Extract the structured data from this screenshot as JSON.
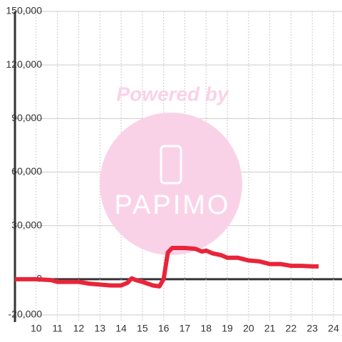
{
  "chart_data": {
    "type": "line",
    "watermark": {
      "top": "Powered by",
      "bottom": "PAPIMO"
    },
    "x": [
      9,
      10,
      10.7,
      11,
      12,
      12.5,
      13,
      13.5,
      14,
      14.3,
      14.5,
      14.7,
      15,
      15.5,
      15.8,
      16,
      16.2,
      16.4,
      17,
      17.5,
      17.8,
      18,
      18.3,
      18.7,
      19,
      19.5,
      20,
      20.5,
      21,
      21.5,
      22,
      22.5,
      23,
      23.3
    ],
    "series": [
      {
        "color": "#e8253a",
        "values": [
          0,
          0,
          -500,
          -1500,
          -1500,
          -2500,
          -3000,
          -3500,
          -3500,
          -2000,
          500,
          -500,
          -1500,
          -3500,
          -4000,
          0,
          15000,
          17500,
          17500,
          17000,
          15500,
          16000,
          14500,
          13500,
          12000,
          12000,
          10500,
          10000,
          8500,
          8500,
          7500,
          7500,
          7200,
          7200
        ]
      }
    ],
    "xlim": [
      9,
      24.4
    ],
    "xticks": [
      10,
      11,
      12,
      13,
      14,
      15,
      16,
      17,
      18,
      19,
      20,
      21,
      22,
      23,
      24
    ],
    "ylim": [
      -24000,
      150000
    ],
    "yticks": [
      {
        "value": -20000,
        "label": "-20,000"
      },
      0,
      {
        "value": 30000,
        "label": "30,000"
      },
      {
        "value": 60000,
        "label": "60,000"
      },
      {
        "value": 90000,
        "label": "90,000"
      },
      {
        "value": 120000,
        "label": "120,000"
      },
      {
        "value": 150000,
        "label": "150,000"
      }
    ],
    "grid": true
  }
}
